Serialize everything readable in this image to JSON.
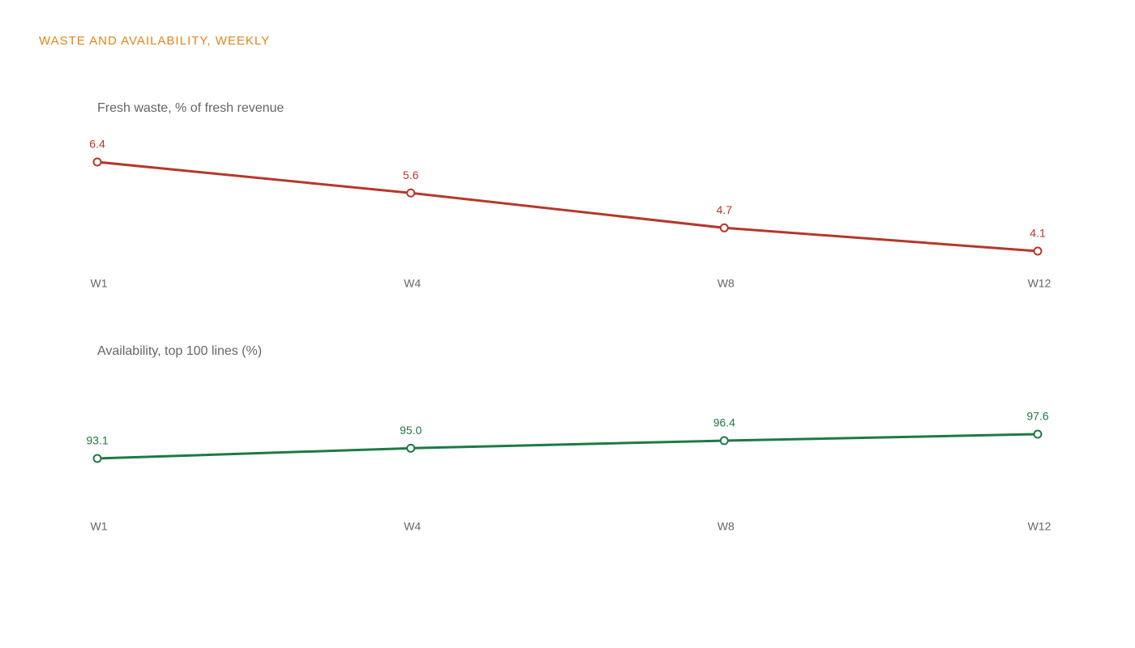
{
  "title": "WASTE AND AVAILABILITY, WEEKLY",
  "chart_data": [
    {
      "type": "line",
      "title": "Fresh waste, % of fresh revenue",
      "categories": [
        "W1",
        "W4",
        "W8",
        "W12"
      ],
      "values": [
        6.4,
        5.6,
        4.7,
        4.1
      ],
      "color": "#b5382b"
    },
    {
      "type": "line",
      "title": "Availability, top 100 lines (%)",
      "categories": [
        "W1",
        "W4",
        "W8",
        "W12"
      ],
      "values": [
        93.1,
        95.0,
        96.4,
        97.6
      ],
      "value_labels": [
        "93.1",
        "95.0",
        "96.4",
        "97.6"
      ],
      "color": "#1e7a45"
    }
  ]
}
